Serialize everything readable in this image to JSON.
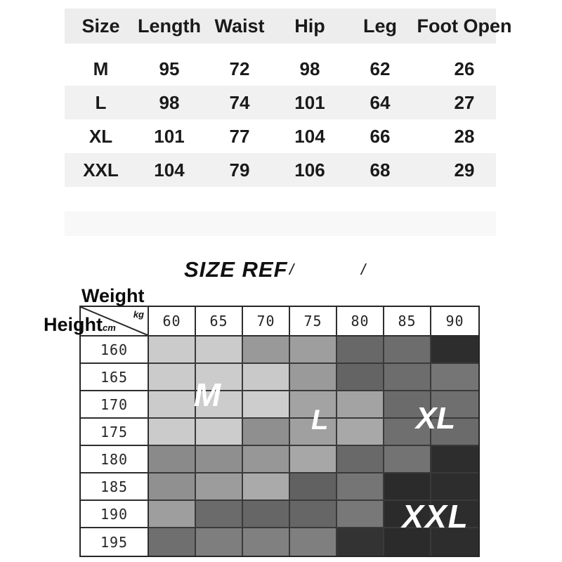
{
  "heading": {
    "title": "SIZE REF",
    "slash_left": "/",
    "slash_right": "/"
  },
  "colors": {
    "header_band": "#ededed",
    "row_band": "#f1f1f1",
    "empty_band": "#f8f8f8",
    "grid_line": "#2e2e2e",
    "region_label_text": "#ffffff"
  },
  "chart_data": [
    {
      "type": "table",
      "title": "Garment measurements (cm)",
      "columns": [
        "Size",
        "Length",
        "Waist",
        "Hip",
        "Leg",
        "Foot Open"
      ],
      "rows": [
        {
          "size": "M",
          "values": [
            95,
            72,
            98,
            62,
            26
          ]
        },
        {
          "size": "L",
          "values": [
            98,
            74,
            101,
            64,
            27
          ]
        },
        {
          "size": "XL",
          "values": [
            101,
            77,
            104,
            66,
            28
          ]
        },
        {
          "size": "XXL",
          "values": [
            104,
            79,
            106,
            68,
            29
          ]
        }
      ]
    },
    {
      "type": "heatmap",
      "title": "SIZE REF",
      "x_label": "Weight",
      "x_unit": "kg",
      "x": [
        "60",
        "65",
        "70",
        "75",
        "80",
        "85",
        "90"
      ],
      "y_label": "Height",
      "y_unit": "cm",
      "y": [
        "160",
        "165",
        "170",
        "175",
        "180",
        "185",
        "190",
        "195"
      ],
      "legend_position": "none",
      "grid": true,
      "cell_colors": [
        [
          "#cbcbcb",
          "#cbcbcb",
          "#999999",
          "#9e9e9e",
          "#686868",
          "#6d6d6d",
          "#2d2d2d"
        ],
        [
          "#cbcbcb",
          "#cccccc",
          "#c9c9c9",
          "#9a9a9a",
          "#646464",
          "#6d6d6d",
          "#757575"
        ],
        [
          "#cbcbcb",
          "#cccccc",
          "#cdcdcd",
          "#a3a3a3",
          "#a3a3a3",
          "#6b6b6b",
          "#6f6f6f"
        ],
        [
          "#cbcbcb",
          "#cccccc",
          "#8f8f8f",
          "#a0a0a0",
          "#a8a8a8",
          "#6f6f6f",
          "#6b6b6b"
        ],
        [
          "#8a8a8a",
          "#8f8f8f",
          "#979797",
          "#a7a7a7",
          "#696969",
          "#737373",
          "#2d2d2d"
        ],
        [
          "#909090",
          "#9c9c9c",
          "#aaaaaa",
          "#616161",
          "#757575",
          "#2b2b2b",
          "#2d2d2d"
        ],
        [
          "#9e9e9e",
          "#6b6b6b",
          "#666666",
          "#666666",
          "#787878",
          "#2b2b2b",
          "#2d2d2d"
        ],
        [
          "#6f6f6f",
          "#7e7e7e",
          "#808080",
          "#7f7f7f",
          "#333333",
          "#2b2b2b",
          "#2d2d2d"
        ]
      ],
      "region_labels": [
        {
          "text": "M",
          "col": 0.74,
          "row": 1.63
        },
        {
          "text": "L",
          "col": 3.13,
          "row": 2.55
        },
        {
          "text": "XL",
          "col": 5.59,
          "row": 2.5
        },
        {
          "text": "XXL",
          "col": 5.59,
          "row": 6.06
        }
      ]
    }
  ]
}
